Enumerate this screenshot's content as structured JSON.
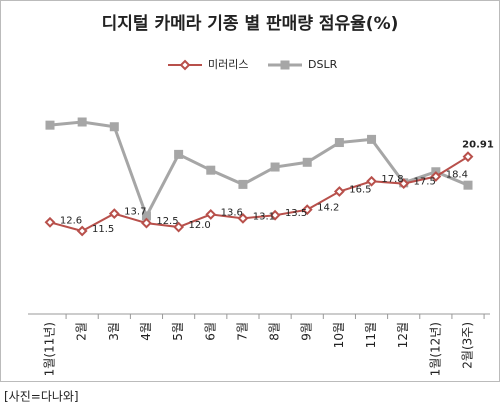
{
  "chart_data": {
    "type": "line",
    "title": "디지털 카메라 기종 별 판매량 점유율(%)",
    "categories": [
      "1월(11년)",
      "2월",
      "3월",
      "4월",
      "5월",
      "6월",
      "7월",
      "8월",
      "9월",
      "10월",
      "11월",
      "12월",
      "1월(12년)",
      "2월(3주)"
    ],
    "series": [
      {
        "name": "미러리스",
        "color": "#b8504b",
        "marker": "diamond",
        "values": [
          12.6,
          11.5,
          13.7,
          12.5,
          12.0,
          13.6,
          13.1,
          13.5,
          14.2,
          16.5,
          17.8,
          17.5,
          18.4,
          20.91
        ],
        "value_labels": [
          "12.6",
          "11.5",
          "13.7",
          "12.5",
          "12.0",
          "13.6",
          "13.1",
          "13.5",
          "14.2",
          "16.5",
          "17.8",
          "17.5",
          "18.4",
          "20.91"
        ]
      },
      {
        "name": "DSLR",
        "color": "#a6a6a6",
        "marker": "square",
        "values": [
          24.9,
          25.3,
          24.7,
          13.4,
          21.2,
          19.2,
          17.4,
          19.6,
          20.2,
          22.7,
          23.1,
          17.6,
          19.0,
          17.3
        ]
      }
    ],
    "legend": "top",
    "source": "[사진=다나와]"
  }
}
